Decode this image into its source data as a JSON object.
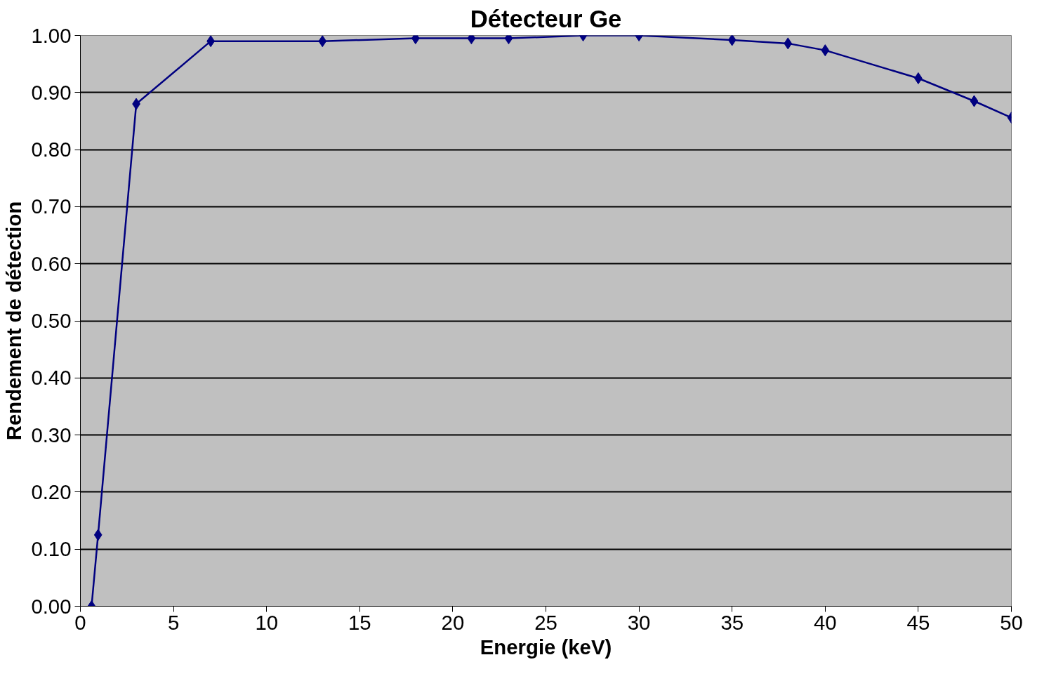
{
  "chart_data": {
    "type": "line",
    "title": "Détecteur Ge",
    "xlabel": "Energie (keV)",
    "ylabel": "Rendement de détection",
    "x": [
      0.6,
      0.95,
      3,
      7,
      13,
      18,
      21,
      23,
      27,
      30,
      35,
      38,
      40,
      45,
      48,
      50
    ],
    "series": [
      {
        "color": "#000080",
        "values": [
          0.0,
          0.125,
          0.88,
          0.99,
          0.99,
          0.995,
          0.995,
          0.995,
          1.0,
          1.0,
          0.992,
          0.986,
          0.974,
          0.925,
          0.885,
          0.856
        ]
      }
    ],
    "xlim": [
      0,
      50
    ],
    "xticks": [
      0,
      5,
      10,
      15,
      20,
      25,
      30,
      35,
      40,
      45,
      50
    ],
    "ylim": [
      0,
      1
    ],
    "yticks": [
      {
        "value": 0,
        "label": "0.00"
      },
      {
        "value": 0.1,
        "label": "0.10"
      },
      {
        "value": 0.2,
        "label": "0.20"
      },
      {
        "value": 0.3,
        "label": "0.30"
      },
      {
        "value": 0.4,
        "label": "0.40"
      },
      {
        "value": 0.5,
        "label": "0.50"
      },
      {
        "value": 0.6,
        "label": "0.60"
      },
      {
        "value": 0.7,
        "label": "0.70"
      },
      {
        "value": 0.8,
        "label": "0.80"
      },
      {
        "value": 0.9,
        "label": "0.90"
      },
      {
        "value": 1,
        "label": "1.00"
      }
    ],
    "grid": "y",
    "marker": "diamond",
    "line_style": "solid"
  }
}
